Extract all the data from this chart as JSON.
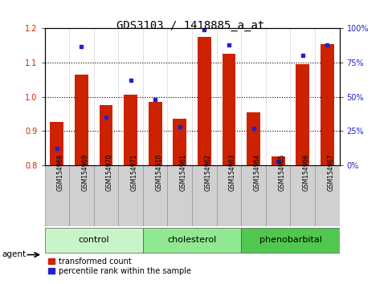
{
  "title": "GDS3103 / 1418885_a_at",
  "samples": [
    "GSM154968",
    "GSM154969",
    "GSM154970",
    "GSM154971",
    "GSM154510",
    "GSM154961",
    "GSM154962",
    "GSM154963",
    "GSM154964",
    "GSM154965",
    "GSM154966",
    "GSM154967"
  ],
  "red_values": [
    0.925,
    1.065,
    0.975,
    1.005,
    0.985,
    0.935,
    1.175,
    1.125,
    0.955,
    0.825,
    1.095,
    1.155
  ],
  "blue_values_pct": [
    12,
    87,
    35,
    62,
    48,
    28,
    99,
    88,
    27,
    3,
    80,
    88
  ],
  "ylim_left": [
    0.8,
    1.2
  ],
  "ylim_right": [
    0,
    100
  ],
  "yticks_left": [
    0.8,
    0.9,
    1.0,
    1.1,
    1.2
  ],
  "yticks_right": [
    0,
    25,
    50,
    75,
    100
  ],
  "ytick_labels_right": [
    "0%",
    "25%",
    "50%",
    "75%",
    "100%"
  ],
  "groups": [
    {
      "label": "control",
      "indices": [
        0,
        1,
        2,
        3
      ],
      "color": "#c8f5c8"
    },
    {
      "label": "cholesterol",
      "indices": [
        4,
        5,
        6,
        7
      ],
      "color": "#90e890"
    },
    {
      "label": "phenobarbital",
      "indices": [
        8,
        9,
        10,
        11
      ],
      "color": "#50c850"
    }
  ],
  "bar_color_red": "#cc2200",
  "bar_color_blue": "#2222cc",
  "bar_width": 0.55,
  "baseline": 0.8,
  "agent_label": "agent",
  "legend_red": "transformed count",
  "legend_blue": "percentile rank within the sample",
  "dotted_lines": [
    0.9,
    1.0,
    1.1
  ],
  "title_fontsize": 10,
  "tick_fontsize": 7,
  "sample_fontsize": 5.5,
  "group_fontsize": 8,
  "legend_fontsize": 7
}
